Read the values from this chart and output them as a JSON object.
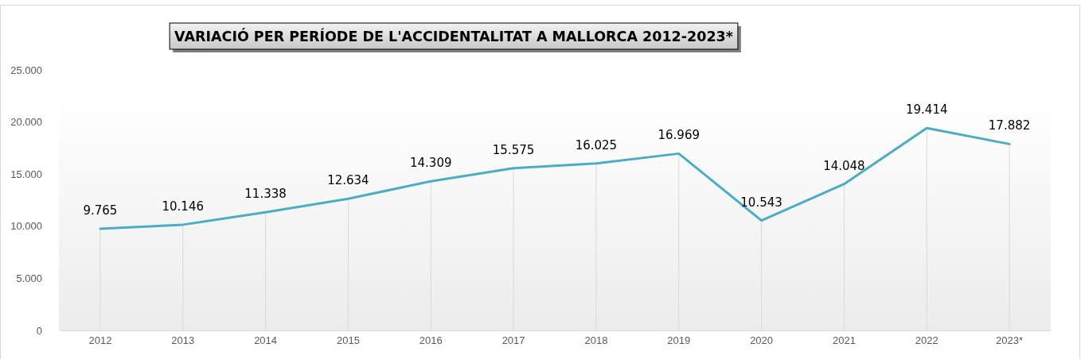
{
  "chart_data": {
    "type": "line",
    "title": "VARIACIÓ PER PERÍODE DE L'ACCIDENTALITAT A MALLORCA 2012-2023*",
    "categories": [
      "2012",
      "2013",
      "2014",
      "2015",
      "2016",
      "2017",
      "2018",
      "2019",
      "2020",
      "2021",
      "2022",
      "2023*"
    ],
    "series": [
      {
        "color": "#4bacc6",
        "values": [
          9765,
          10146,
          11338,
          12634,
          14309,
          15575,
          16025,
          16969,
          10543,
          14048,
          19414,
          17882
        ],
        "value_labels": [
          "9.765",
          "10.146",
          "11.338",
          "12.634",
          "14.309",
          "15.575",
          "16.025",
          "16.969",
          "10.543",
          "14.048",
          "19.414",
          "17.882"
        ]
      }
    ],
    "ylim": [
      0,
      25000
    ],
    "yticks": [
      {
        "value": 0,
        "label": "0"
      },
      {
        "value": 5000,
        "label": "5.000"
      },
      {
        "value": 10000,
        "label": "10.000"
      },
      {
        "value": 15000,
        "label": "15.000"
      },
      {
        "value": 20000,
        "label": "20.000"
      },
      {
        "value": 25000,
        "label": "25.000"
      }
    ],
    "grid": "x",
    "marker": "none",
    "line_style": "solid"
  }
}
